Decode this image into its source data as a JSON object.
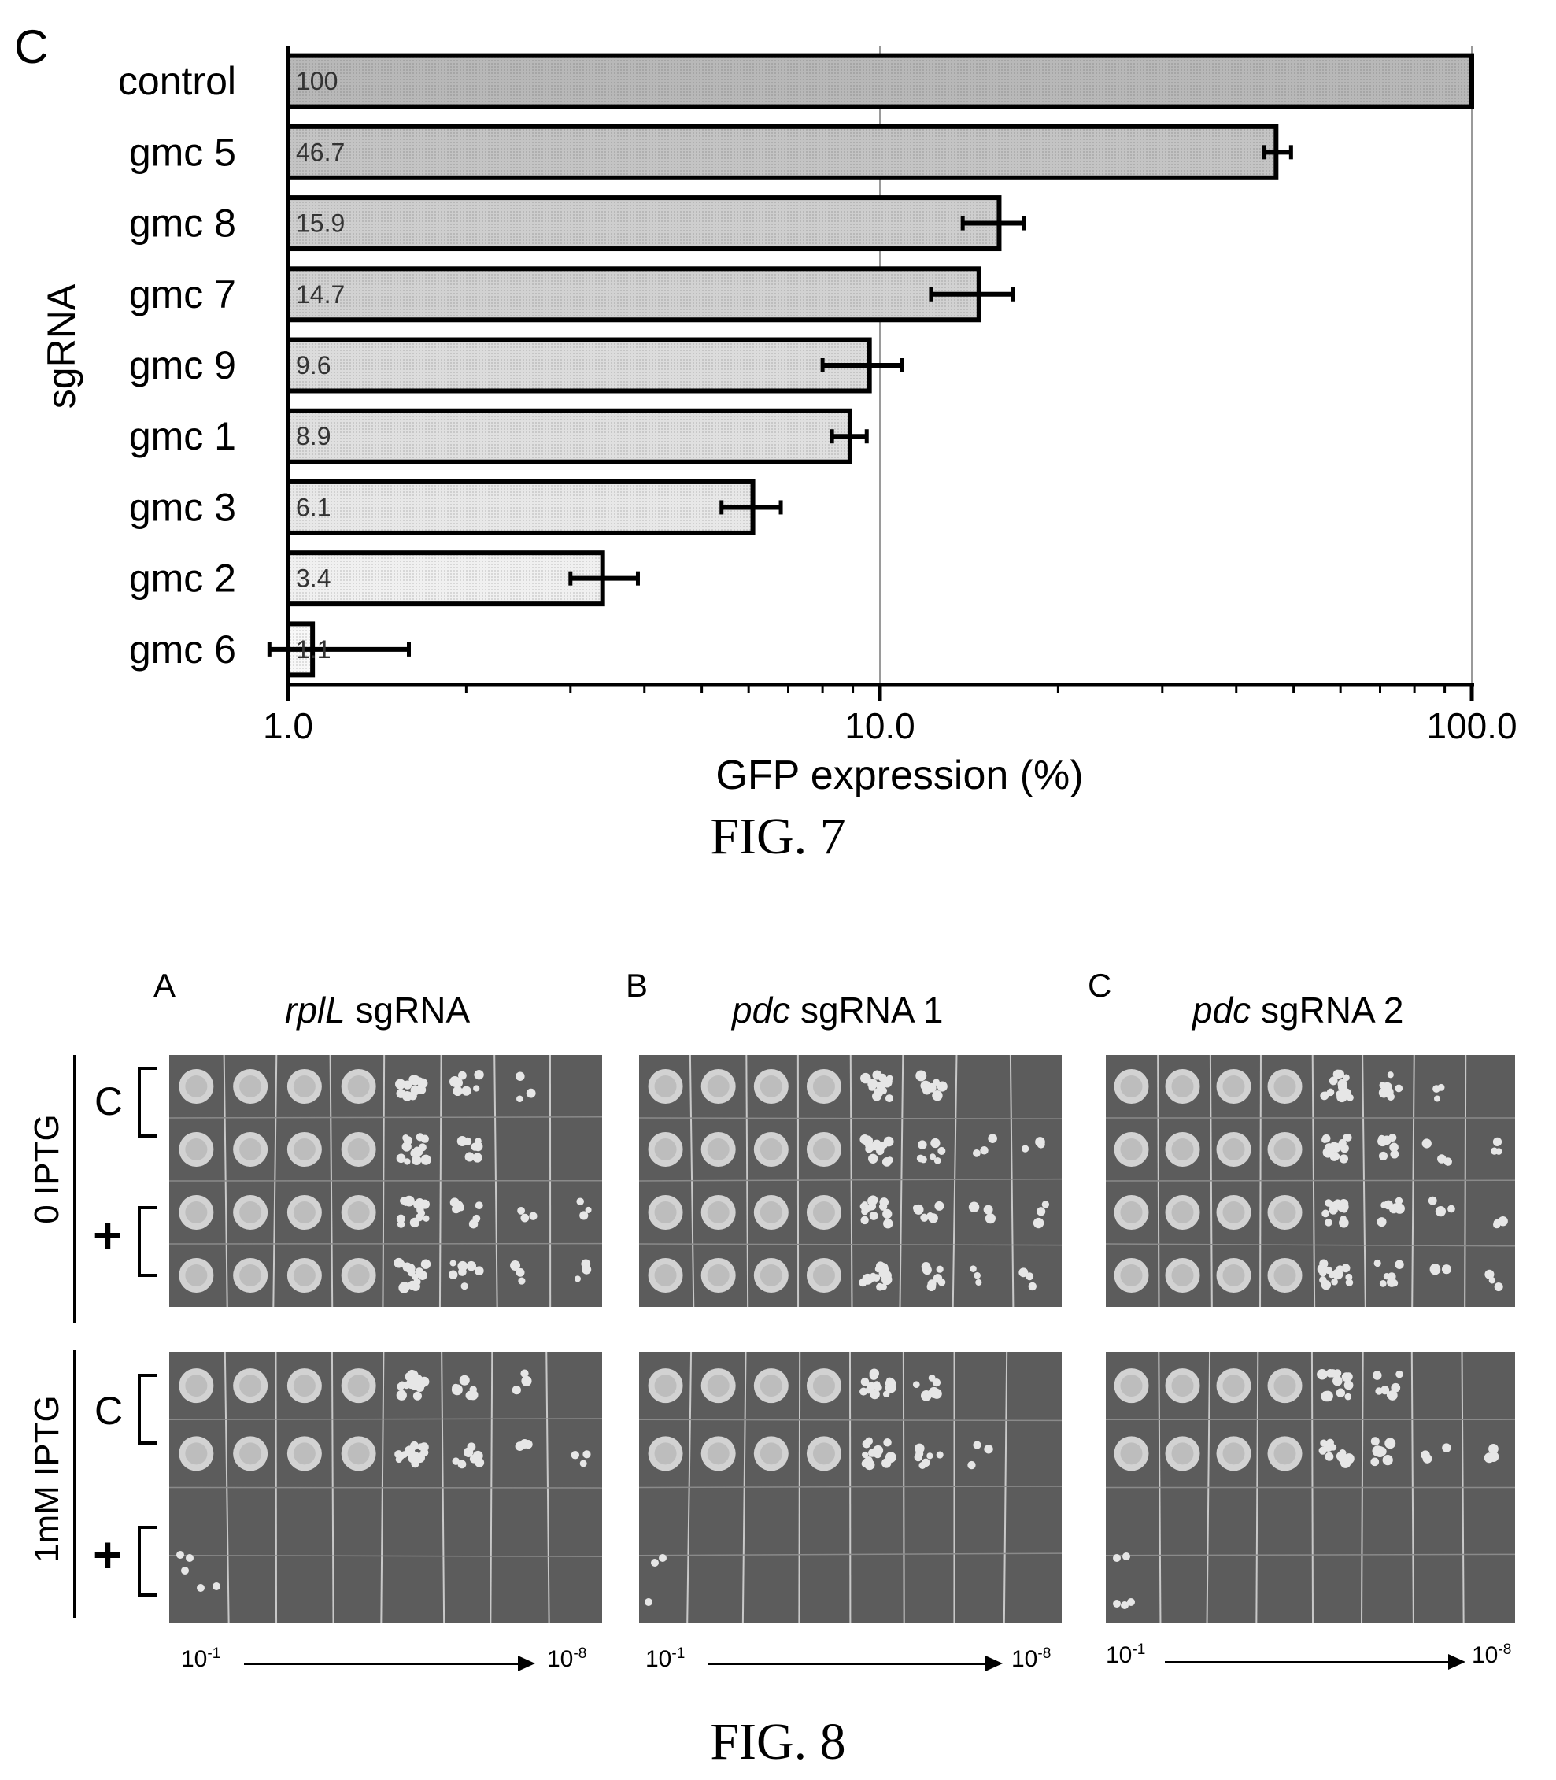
{
  "figure7": {
    "panel_letter": "C",
    "caption": "FIG. 7"
  },
  "chart_data": {
    "type": "bar",
    "orientation": "horizontal",
    "categories": [
      "control",
      "gmc 5",
      "gmc 8",
      "gmc 7",
      "gmc 9",
      "gmc 1",
      "gmc 3",
      "gmc 2",
      "gmc 6"
    ],
    "values": [
      100,
      46.7,
      15.9,
      14.7,
      9.6,
      8.9,
      6.1,
      3.4,
      1.1
    ],
    "value_labels": [
      "100",
      "46.7",
      "15.9",
      "14.7",
      "9.6",
      "8.9",
      "6.1",
      "3.4",
      "1.1"
    ],
    "error_low": [
      100,
      44.5,
      13.8,
      12.2,
      8.0,
      8.3,
      5.4,
      3.0,
      0.93
    ],
    "error_high": [
      100,
      49.5,
      17.5,
      16.8,
      10.9,
      9.5,
      6.8,
      3.9,
      1.6
    ],
    "xlabel": "GFP expression (%)",
    "ylabel": "sgRNA",
    "xscale": "log",
    "xlim": [
      1.0,
      100.0
    ],
    "xticks": [
      1.0,
      10.0,
      100.0
    ],
    "xtick_labels": [
      "1.0",
      "10.0",
      "100.0"
    ],
    "grid": "vertical major lines",
    "bar_colors": [
      "#b8b8b8",
      "#c4c4c4",
      "#cecece",
      "#d2d2d2",
      "#dcdcdc",
      "#e0e0e0",
      "#e8e8e8",
      "#f0f0f0",
      "#f8f8f8"
    ]
  },
  "figure8": {
    "caption": "FIG. 8",
    "panels": [
      {
        "letter": "A",
        "title_italic": "rplL",
        "title_rest": " sgRNA"
      },
      {
        "letter": "B",
        "title_italic": "pdc",
        "title_rest": " sgRNA 1"
      },
      {
        "letter": "C",
        "title_italic": "pdc",
        "title_rest": " sgRNA 2"
      }
    ],
    "rows": [
      {
        "label": "0 IPTG",
        "groups": [
          "C",
          "+"
        ]
      },
      {
        "label": "1mM IPTG",
        "groups": [
          "C",
          "+"
        ]
      }
    ],
    "dilution_start": "10",
    "dilution_start_exp": "-1",
    "dilution_end": "10",
    "dilution_end_exp": "-8",
    "plate_color": "#5c5c5c",
    "colony_color": "#e6e6e6"
  }
}
